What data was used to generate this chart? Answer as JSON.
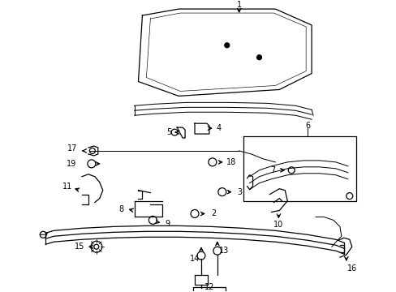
{
  "bg_color": "#ffffff",
  "figsize": [
    4.89,
    3.6
  ],
  "dpi": 100,
  "lw": 0.9,
  "color": "#000000"
}
